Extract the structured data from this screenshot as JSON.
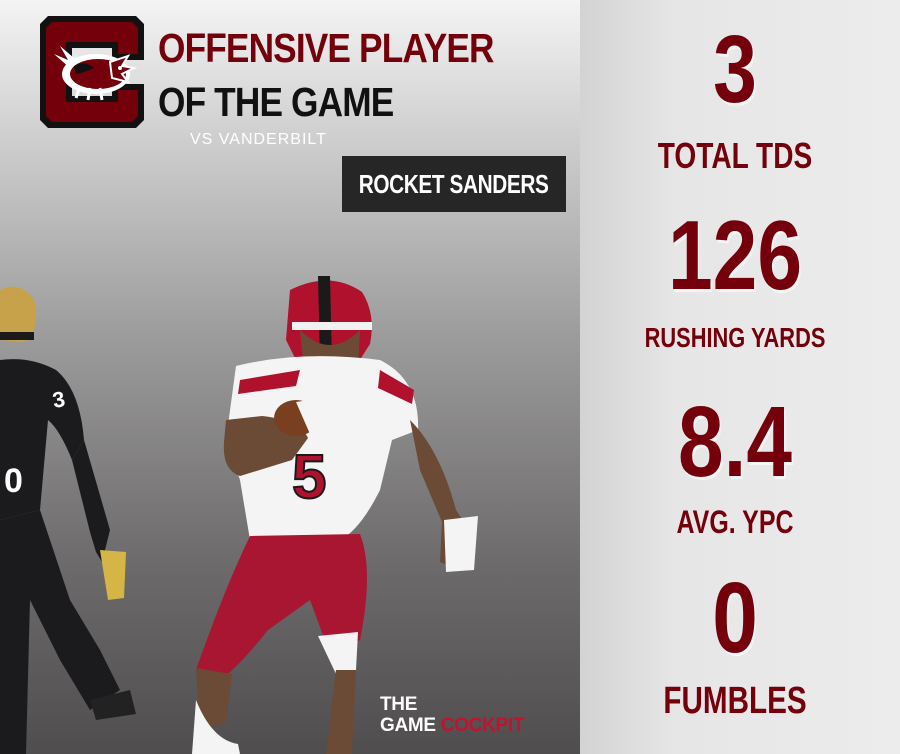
{
  "header": {
    "title_line1": "OFFENSIVE PLAYER",
    "title_line2": "OF THE GAME",
    "opponent": "VS VANDERBILT"
  },
  "player": {
    "name": "ROCKET SANDERS",
    "jersey_number": "5"
  },
  "stats": [
    {
      "value": "3",
      "label": "TOTAL TDS"
    },
    {
      "value": "126",
      "label": "RUSHING YARDS"
    },
    {
      "value": "8.4",
      "label": "AVG. YPC"
    },
    {
      "value": "0",
      "label": "FUMBLES"
    }
  ],
  "watermark": {
    "line1": "THE",
    "line2_main": "GAME ",
    "line2_accent": "COCKPIT"
  },
  "colors": {
    "garnet": "#73000a",
    "black": "#111111",
    "white": "#ffffff",
    "name_plate": "#262626",
    "watermark_accent": "#c8102e"
  },
  "icons": {
    "logo": "block-c-gamecock-logo"
  }
}
